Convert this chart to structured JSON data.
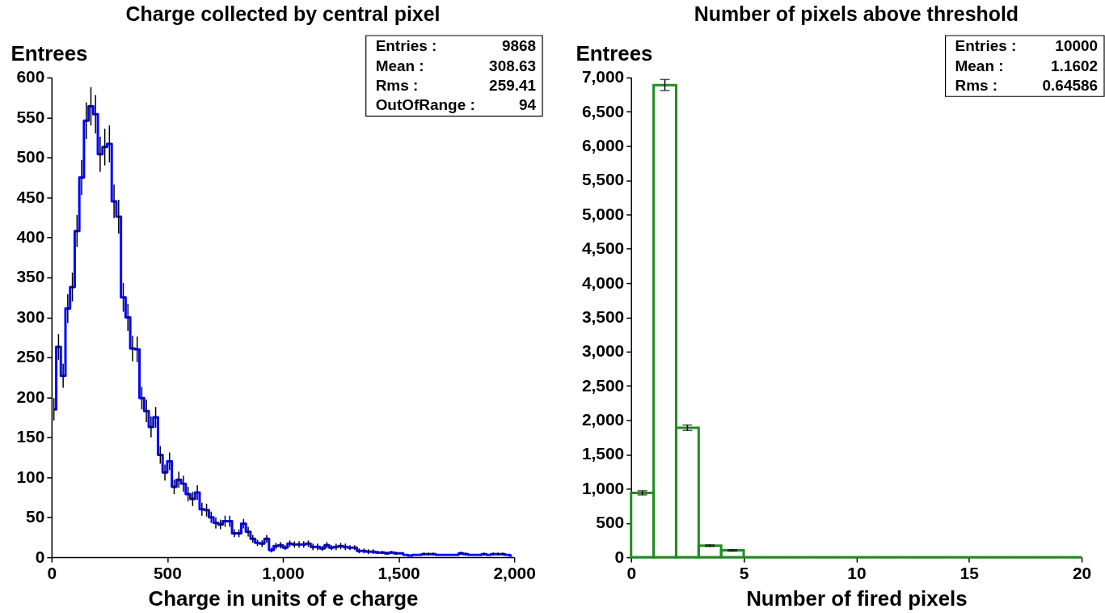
{
  "chart_data": [
    {
      "type": "step",
      "title": "Charge collected by central pixel",
      "xlabel": "Charge in units of e charge",
      "ylabel": "Entrees",
      "x": [
        10,
        30,
        50,
        70,
        90,
        110,
        130,
        150,
        170,
        190,
        210,
        230,
        250,
        270,
        290,
        310,
        330,
        350,
        370,
        390,
        410,
        430,
        450,
        470,
        490,
        510,
        530,
        550,
        570,
        590,
        610,
        630,
        650,
        670,
        690,
        710,
        730,
        750,
        770,
        790,
        810,
        830,
        850,
        870,
        890,
        910,
        930,
        950,
        970,
        990,
        1010,
        1030,
        1050,
        1070,
        1090,
        1110,
        1130,
        1150,
        1170,
        1190,
        1210,
        1230,
        1250,
        1270,
        1290,
        1310,
        1330,
        1350,
        1370,
        1390,
        1410,
        1430,
        1450,
        1470,
        1490,
        1510,
        1530,
        1550,
        1570,
        1590,
        1610,
        1630,
        1650,
        1670,
        1690,
        1710,
        1730,
        1750,
        1770,
        1790,
        1810,
        1830,
        1850,
        1870,
        1890,
        1910,
        1930,
        1950,
        1970,
        1990
      ],
      "color": "#0000ff",
      "values": [
        185,
        263,
        227,
        311,
        338,
        408,
        475,
        546,
        564,
        554,
        504,
        513,
        517,
        445,
        426,
        325,
        300,
        261,
        260,
        199,
        183,
        163,
        175,
        128,
        106,
        120,
        88,
        97,
        92,
        79,
        73,
        81,
        60,
        59,
        50,
        43,
        41,
        45,
        45,
        30,
        30,
        42,
        32,
        23,
        18,
        17,
        23,
        9,
        14,
        15,
        12,
        17,
        16,
        16,
        16,
        17,
        13,
        13,
        11,
        15,
        12,
        13,
        14,
        13,
        12,
        12,
        8,
        8,
        7,
        7,
        6,
        6,
        5,
        6,
        5,
        5,
        3,
        2,
        3,
        3,
        4,
        4,
        4,
        3,
        3,
        3,
        3,
        3,
        5,
        4,
        3,
        3,
        3,
        4,
        3,
        4,
        4,
        4,
        3,
        2
      ],
      "errors": [
        14,
        16,
        15,
        18,
        18,
        20,
        22,
        23,
        24,
        24,
        22,
        23,
        23,
        21,
        21,
        18,
        17,
        16,
        16,
        14,
        14,
        13,
        13,
        11,
        10,
        11,
        9,
        10,
        10,
        9,
        9,
        9,
        8,
        8,
        7,
        7,
        6,
        7,
        7,
        5,
        5,
        6,
        6,
        5,
        4,
        4,
        5,
        3,
        4,
        4,
        3,
        4,
        4,
        4,
        4,
        4,
        4,
        4,
        3,
        4,
        3,
        4,
        4,
        4,
        3,
        3,
        3,
        3,
        3,
        3,
        2,
        2,
        2,
        2,
        2,
        null,
        null,
        null,
        null,
        null,
        2,
        2,
        2,
        null,
        null,
        null,
        null,
        null,
        2,
        2,
        null,
        null,
        null,
        2,
        null,
        2,
        2,
        2,
        null,
        null
      ],
      "xlim": [
        0,
        2000
      ],
      "ylim": [
        0,
        600
      ],
      "xticks": [
        0,
        500,
        {
          "value": 1000,
          "label": "1,000"
        },
        {
          "value": 1500,
          "label": "1,500"
        },
        {
          "value": 2000,
          "label": "2,000"
        }
      ],
      "yticks": [
        0,
        50,
        100,
        150,
        200,
        250,
        300,
        350,
        400,
        450,
        500,
        550,
        600
      ],
      "annotations": [
        "Entries : 9868",
        "Mean : 308.63",
        "Rms : 259.41",
        "OutOfRange : 94"
      ]
    },
    {
      "type": "histogram",
      "title": "Number of pixels above threshold",
      "xlabel": "Number of fired pixels",
      "ylabel": "Entrees",
      "bins": [
        0,
        1,
        2,
        3,
        4,
        5,
        6,
        7,
        8,
        9,
        10,
        11,
        12,
        13,
        14,
        15,
        16,
        17,
        18,
        19,
        20
      ],
      "color": "#228b22",
      "values": [
        940,
        6890,
        1890,
        170,
        100,
        0,
        0,
        0,
        0,
        0,
        0,
        0,
        0,
        0,
        0,
        0,
        0,
        0,
        0,
        0
      ],
      "errors": [
        30,
        80,
        40,
        10,
        10,
        null,
        null,
        null,
        null,
        null,
        null,
        null,
        null,
        null,
        null,
        null,
        null,
        null,
        null,
        null
      ],
      "xlim": [
        0,
        20
      ],
      "ylim": [
        0,
        7000
      ],
      "xticks": [
        0,
        5,
        10,
        15,
        20
      ],
      "yticks": [
        0,
        500,
        {
          "value": 1000,
          "label": "1,000"
        },
        {
          "value": 1500,
          "label": "1,500"
        },
        {
          "value": 2000,
          "label": "2,000"
        },
        {
          "value": 2500,
          "label": "2,500"
        },
        {
          "value": 3000,
          "label": "3,000"
        },
        {
          "value": 3500,
          "label": "3,500"
        },
        {
          "value": 4000,
          "label": "4,000"
        },
        {
          "value": 4500,
          "label": "4,500"
        },
        {
          "value": 5000,
          "label": "5,000"
        },
        {
          "value": 5500,
          "label": "5,500"
        },
        {
          "value": 6000,
          "label": "6,000"
        },
        {
          "value": 6500,
          "label": "6,500"
        },
        {
          "value": 7000,
          "label": "7,000"
        }
      ],
      "annotations": [
        "Entries : 10000",
        "Mean : 1.1602",
        "Rms : 0.64586"
      ]
    }
  ]
}
